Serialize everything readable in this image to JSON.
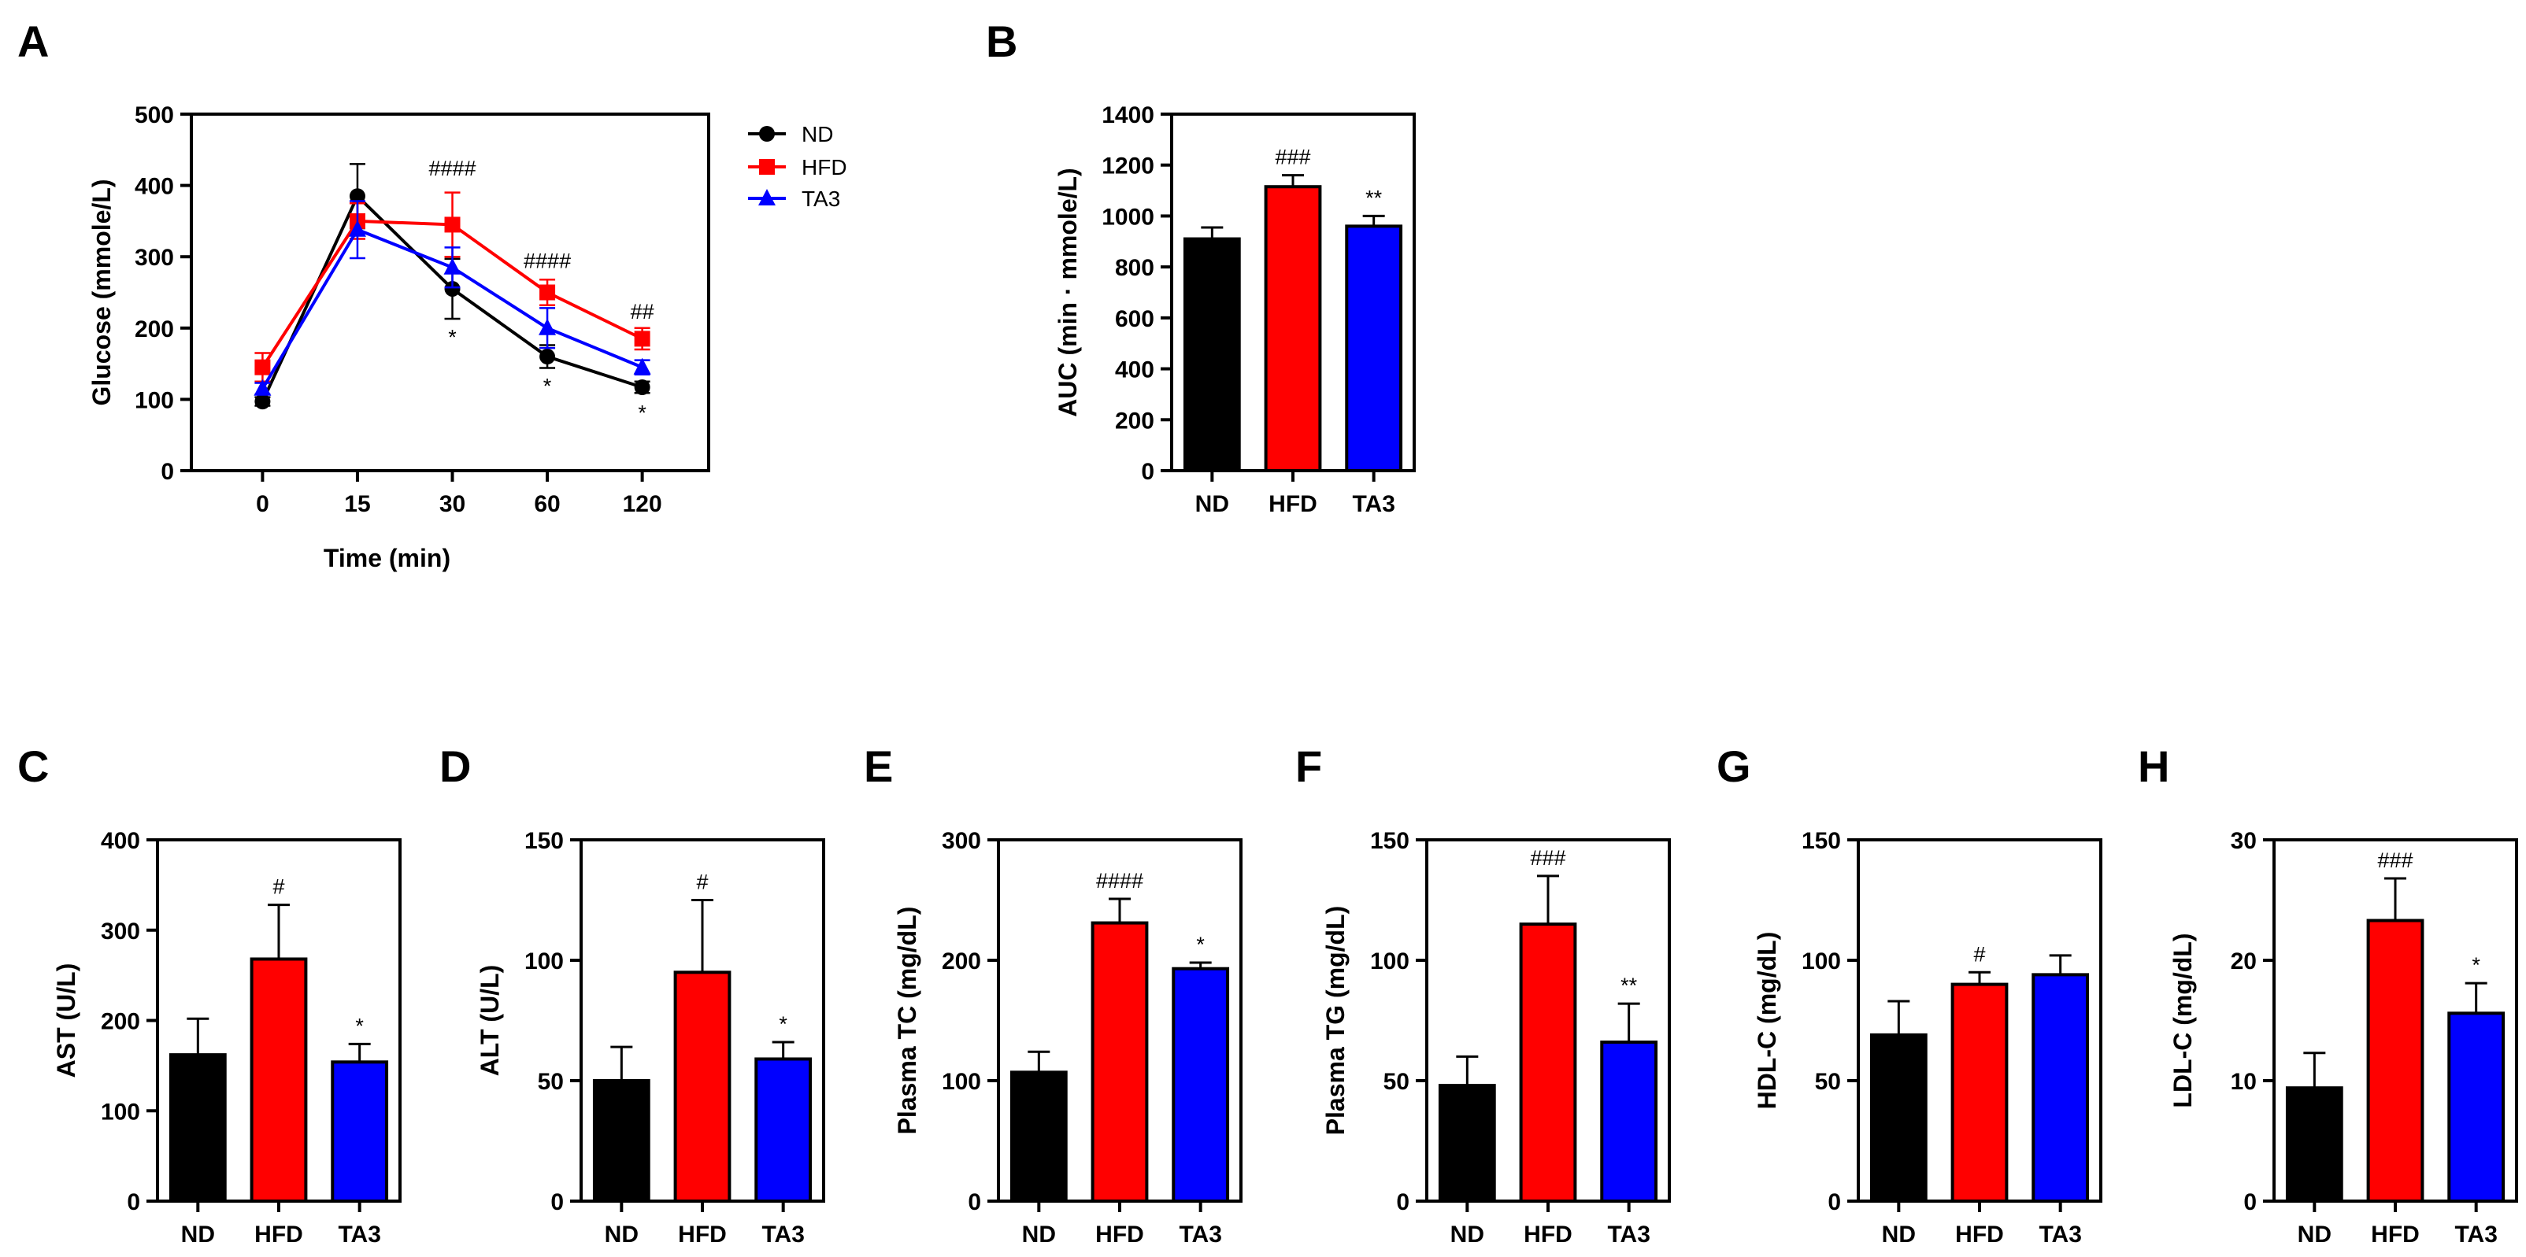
{
  "colors": {
    "ND": "#000000",
    "HFD": "#ff0000",
    "TA3": "#0000ff"
  },
  "chart_data": [
    {
      "panel": "A",
      "type": "line",
      "categories": [
        "0",
        "15",
        "30",
        "60",
        "120"
      ],
      "xlabel": "Time (min)",
      "ylabel": "Glucose (mmole/L)",
      "ylim": [
        0,
        500
      ],
      "yticks": [
        "0",
        "100",
        "200",
        "300",
        "400",
        "500"
      ],
      "legend": "top-right",
      "series": [
        {
          "name": "ND",
          "marker": "circle",
          "values": [
            97,
            385,
            255,
            160,
            117
          ],
          "err": [
            6,
            45,
            42,
            16,
            8
          ]
        },
        {
          "name": "HFD",
          "marker": "square",
          "values": [
            145,
            350,
            345,
            250,
            185
          ],
          "err": [
            20,
            25,
            45,
            18,
            15
          ]
        },
        {
          "name": "TA3",
          "marker": "triangle",
          "values": [
            115,
            338,
            285,
            200,
            145
          ],
          "err": [
            8,
            40,
            28,
            28,
            10
          ]
        }
      ],
      "annotations": [
        {
          "x": "30",
          "text": "####",
          "y": 425
        },
        {
          "x": "60",
          "text": "####",
          "y": 295
        },
        {
          "x": "120",
          "text": "##",
          "y": 224
        },
        {
          "x": "30",
          "text": "*",
          "y": 188
        },
        {
          "x": "60",
          "text": "*",
          "y": 120
        },
        {
          "x": "120",
          "text": "*",
          "y": 82
        }
      ]
    },
    {
      "panel": "B",
      "type": "bar",
      "categories": [
        "ND",
        "HFD",
        "TA3"
      ],
      "values": [
        910,
        1115,
        960
      ],
      "err": [
        45,
        45,
        40
      ],
      "ylabel": "AUC (min · mmole/L)",
      "ylim": [
        0,
        1400
      ],
      "yticks": [
        "0",
        "200",
        "400",
        "600",
        "800",
        "1000",
        "1200",
        "1400"
      ],
      "annotations": [
        {
          "category": "HFD",
          "text": "###"
        },
        {
          "category": "TA3",
          "text": "**"
        }
      ]
    },
    {
      "panel": "C",
      "type": "bar",
      "categories": [
        "ND",
        "HFD",
        "TA3"
      ],
      "values": [
        162,
        268,
        154
      ],
      "err": [
        40,
        60,
        20
      ],
      "ylabel": "AST (U/L)",
      "ylim": [
        0,
        400
      ],
      "yticks": [
        "0",
        "100",
        "200",
        "300",
        "400"
      ],
      "annotations": [
        {
          "category": "HFD",
          "text": "#"
        },
        {
          "category": "TA3",
          "text": "*"
        }
      ]
    },
    {
      "panel": "D",
      "type": "bar",
      "categories": [
        "ND",
        "HFD",
        "TA3"
      ],
      "values": [
        50,
        95,
        59
      ],
      "err": [
        14,
        30,
        7
      ],
      "ylabel": "ALT (U/L)",
      "ylim": [
        0,
        150
      ],
      "yticks": [
        "0",
        "50",
        "100",
        "150"
      ],
      "annotations": [
        {
          "category": "HFD",
          "text": "#"
        },
        {
          "category": "TA3",
          "text": "*"
        }
      ]
    },
    {
      "panel": "E",
      "type": "bar",
      "categories": [
        "ND",
        "HFD",
        "TA3"
      ],
      "values": [
        107,
        231,
        193
      ],
      "err": [
        17,
        20,
        5
      ],
      "ylabel": "Plasma TC (mg/dL)",
      "ylim": [
        0,
        300
      ],
      "yticks": [
        "0",
        "100",
        "200",
        "300"
      ],
      "annotations": [
        {
          "category": "HFD",
          "text": "####"
        },
        {
          "category": "TA3",
          "text": "*"
        }
      ]
    },
    {
      "panel": "F",
      "type": "bar",
      "categories": [
        "ND",
        "HFD",
        "TA3"
      ],
      "values": [
        48,
        115,
        66
      ],
      "err": [
        12,
        20,
        16
      ],
      "ylabel": "Plasma TG (mg/dL)",
      "ylim": [
        0,
        150
      ],
      "yticks": [
        "0",
        "50",
        "100",
        "150"
      ],
      "annotations": [
        {
          "category": "HFD",
          "text": "###"
        },
        {
          "category": "TA3",
          "text": "**"
        }
      ]
    },
    {
      "panel": "G",
      "type": "bar",
      "categories": [
        "ND",
        "HFD",
        "TA3"
      ],
      "values": [
        69,
        90,
        94
      ],
      "err": [
        14,
        5,
        8
      ],
      "ylabel": "HDL-C (mg/dL)",
      "ylim": [
        0,
        150
      ],
      "yticks": [
        "0",
        "50",
        "100",
        "150"
      ],
      "annotations": [
        {
          "category": "HFD",
          "text": "#"
        }
      ]
    },
    {
      "panel": "H",
      "type": "bar",
      "categories": [
        "ND",
        "HFD",
        "TA3"
      ],
      "values": [
        9.4,
        23.3,
        15.6
      ],
      "err": [
        2.9,
        3.5,
        2.5
      ],
      "ylabel": "LDL-C (mg/dL)",
      "ylim": [
        0,
        30
      ],
      "yticks": [
        "0",
        "10",
        "20",
        "30"
      ],
      "annotations": [
        {
          "category": "HFD",
          "text": "###"
        },
        {
          "category": "TA3",
          "text": "*"
        }
      ]
    }
  ]
}
